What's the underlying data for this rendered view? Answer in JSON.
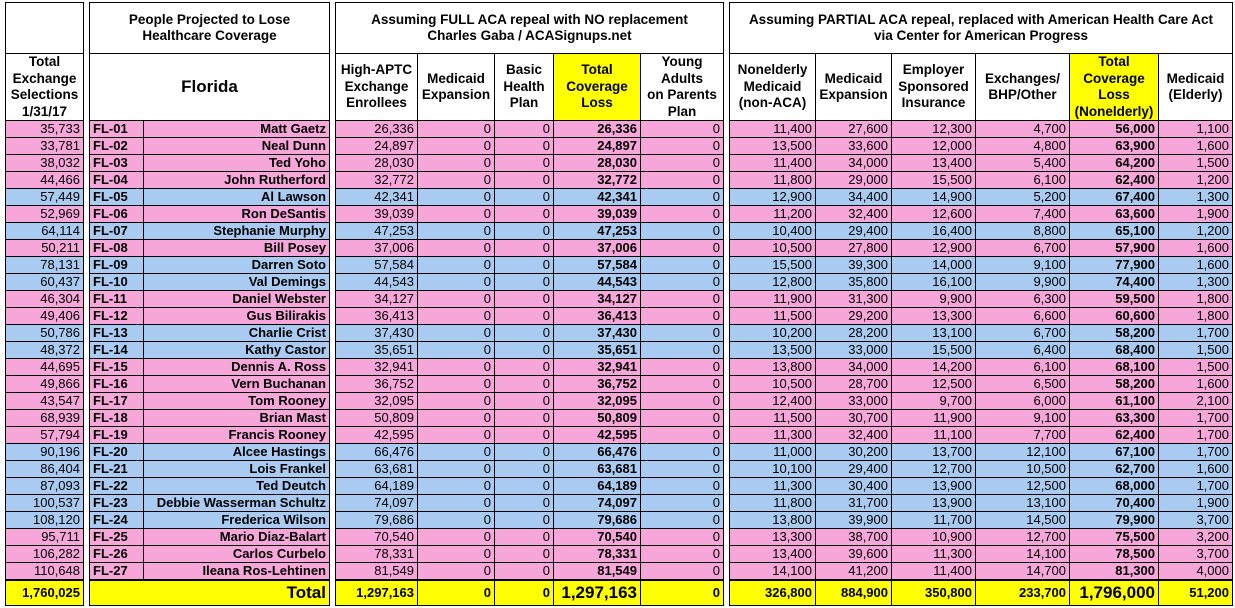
{
  "header": {
    "selections": [
      "Total",
      "Exchange",
      "Selections",
      "1/31/17"
    ],
    "group1": [
      "People Projected to Lose",
      "Healthcare Coverage"
    ],
    "state": "Florida",
    "group2": [
      "Assuming FULL ACA repeal with NO replacement",
      "Charles Gaba / ACASignups.net"
    ],
    "group3": [
      "Assuming PARTIAL ACA repeal, replaced with American Health Care Act",
      "via Center for American Progress"
    ],
    "columns": [
      [
        "High-APTC",
        "Exchange",
        "Enrollees"
      ],
      [
        "Medicaid",
        "Expansion"
      ],
      [
        "Basic",
        "Health",
        "Plan"
      ],
      [
        "Total",
        "Coverage",
        "Loss"
      ],
      [
        "Young",
        "Adults",
        "on Parents",
        "Plan"
      ],
      [
        "Nonelderly",
        "Medicaid",
        "(non-ACA)"
      ],
      [
        "Medicaid",
        "Expansion"
      ],
      [
        "Employer",
        "Sponsored",
        "Insurance"
      ],
      [
        "Exchanges/",
        "BHP/Other"
      ],
      [
        "Total",
        "Coverage",
        "Loss",
        "(Nonelderly)"
      ],
      [
        "Medicaid",
        "(Elderly)"
      ]
    ]
  },
  "table": {
    "rows": [
      [
        "35,733",
        "FL-01",
        "Matt Gaetz",
        "26,336",
        "0",
        "0",
        "26,336",
        "0",
        "11,400",
        "27,600",
        "12,300",
        "4,700",
        "56,000",
        "1,100"
      ],
      [
        "33,781",
        "FL-02",
        "Neal Dunn",
        "24,897",
        "0",
        "0",
        "24,897",
        "0",
        "13,500",
        "33,600",
        "12,000",
        "4,800",
        "63,900",
        "1,600"
      ],
      [
        "38,032",
        "FL-03",
        "Ted Yoho",
        "28,030",
        "0",
        "0",
        "28,030",
        "0",
        "11,400",
        "34,000",
        "13,400",
        "5,400",
        "64,200",
        "1,500"
      ],
      [
        "44,466",
        "FL-04",
        "John Rutherford",
        "32,772",
        "0",
        "0",
        "32,772",
        "0",
        "11,800",
        "29,000",
        "15,500",
        "6,100",
        "62,400",
        "1,200"
      ],
      [
        "57,449",
        "FL-05",
        "Al Lawson",
        "42,341",
        "0",
        "0",
        "42,341",
        "0",
        "12,900",
        "34,400",
        "14,900",
        "5,200",
        "67,400",
        "1,300"
      ],
      [
        "52,969",
        "FL-06",
        "Ron DeSantis",
        "39,039",
        "0",
        "0",
        "39,039",
        "0",
        "11,200",
        "32,400",
        "12,600",
        "7,400",
        "63,600",
        "1,900"
      ],
      [
        "64,114",
        "FL-07",
        "Stephanie Murphy",
        "47,253",
        "0",
        "0",
        "47,253",
        "0",
        "10,400",
        "29,400",
        "16,400",
        "8,800",
        "65,100",
        "1,200"
      ],
      [
        "50,211",
        "FL-08",
        "Bill Posey",
        "37,006",
        "0",
        "0",
        "37,006",
        "0",
        "10,500",
        "27,800",
        "12,900",
        "6,700",
        "57,900",
        "1,600"
      ],
      [
        "78,131",
        "FL-09",
        "Darren Soto",
        "57,584",
        "0",
        "0",
        "57,584",
        "0",
        "15,500",
        "39,300",
        "14,000",
        "9,100",
        "77,900",
        "1,600"
      ],
      [
        "60,437",
        "FL-10",
        "Val Demings",
        "44,543",
        "0",
        "0",
        "44,543",
        "0",
        "12,800",
        "35,800",
        "16,100",
        "9,900",
        "74,400",
        "1,300"
      ],
      [
        "46,304",
        "FL-11",
        "Daniel Webster",
        "34,127",
        "0",
        "0",
        "34,127",
        "0",
        "11,900",
        "31,300",
        "9,900",
        "6,300",
        "59,500",
        "1,800"
      ],
      [
        "49,406",
        "FL-12",
        "Gus Bilirakis",
        "36,413",
        "0",
        "0",
        "36,413",
        "0",
        "11,500",
        "29,200",
        "13,300",
        "6,600",
        "60,600",
        "1,800"
      ],
      [
        "50,786",
        "FL-13",
        "Charlie Crist",
        "37,430",
        "0",
        "0",
        "37,430",
        "0",
        "10,200",
        "28,200",
        "13,100",
        "6,700",
        "58,200",
        "1,700"
      ],
      [
        "48,372",
        "FL-14",
        "Kathy Castor",
        "35,651",
        "0",
        "0",
        "35,651",
        "0",
        "13,500",
        "33,000",
        "15,500",
        "6,400",
        "68,400",
        "1,500"
      ],
      [
        "44,695",
        "FL-15",
        "Dennis A. Ross",
        "32,941",
        "0",
        "0",
        "32,941",
        "0",
        "13,800",
        "34,000",
        "14,200",
        "6,100",
        "68,100",
        "1,500"
      ],
      [
        "49,866",
        "FL-16",
        "Vern Buchanan",
        "36,752",
        "0",
        "0",
        "36,752",
        "0",
        "10,500",
        "28,700",
        "12,500",
        "6,500",
        "58,200",
        "1,600"
      ],
      [
        "43,547",
        "FL-17",
        "Tom Rooney",
        "32,095",
        "0",
        "0",
        "32,095",
        "0",
        "12,400",
        "33,000",
        "9,700",
        "6,000",
        "61,100",
        "2,100"
      ],
      [
        "68,939",
        "FL-18",
        "Brian Mast",
        "50,809",
        "0",
        "0",
        "50,809",
        "0",
        "11,500",
        "30,700",
        "11,900",
        "9,100",
        "63,300",
        "1,700"
      ],
      [
        "57,794",
        "FL-19",
        "Francis Rooney",
        "42,595",
        "0",
        "0",
        "42,595",
        "0",
        "11,300",
        "32,400",
        "11,100",
        "7,700",
        "62,400",
        "1,700"
      ],
      [
        "90,196",
        "FL-20",
        "Alcee Hastings",
        "66,476",
        "0",
        "0",
        "66,476",
        "0",
        "11,000",
        "30,200",
        "13,700",
        "12,100",
        "67,100",
        "1,700"
      ],
      [
        "86,404",
        "FL-21",
        "Lois Frankel",
        "63,681",
        "0",
        "0",
        "63,681",
        "0",
        "10,100",
        "29,400",
        "12,700",
        "10,500",
        "62,700",
        "1,600"
      ],
      [
        "87,093",
        "FL-22",
        "Ted Deutch",
        "64,189",
        "0",
        "0",
        "64,189",
        "0",
        "11,300",
        "30,400",
        "13,900",
        "12,500",
        "68,000",
        "1,700"
      ],
      [
        "100,537",
        "FL-23",
        "Debbie Wasserman Schultz",
        "74,097",
        "0",
        "0",
        "74,097",
        "0",
        "11,800",
        "31,700",
        "13,900",
        "13,100",
        "70,400",
        "1,900"
      ],
      [
        "108,120",
        "FL-24",
        "Frederica Wilson",
        "79,686",
        "0",
        "0",
        "79,686",
        "0",
        "13,800",
        "39,900",
        "11,700",
        "14,500",
        "79,900",
        "3,700"
      ],
      [
        "95,711",
        "FL-25",
        "Mario Diaz-Balart",
        "70,540",
        "0",
        "0",
        "70,540",
        "0",
        "13,300",
        "38,700",
        "10,900",
        "12,700",
        "75,500",
        "3,200"
      ],
      [
        "106,282",
        "FL-26",
        "Carlos Curbelo",
        "78,331",
        "0",
        "0",
        "78,331",
        "0",
        "13,400",
        "39,600",
        "11,300",
        "14,100",
        "78,500",
        "3,700"
      ],
      [
        "110,648",
        "FL-27",
        "Ileana Ros-Lehtinen",
        "81,549",
        "0",
        "0",
        "81,549",
        "0",
        "14,100",
        "41,200",
        "11,400",
        "14,700",
        "81,300",
        "4,000"
      ]
    ],
    "row_colors": [
      "#f7a6d9",
      "#f7a6d9",
      "#f7a6d9",
      "#f7a6d9",
      "#a9cbf2",
      "#f7a6d9",
      "#a9cbf2",
      "#f7a6d9",
      "#a9cbf2",
      "#a9cbf2",
      "#f7a6d9",
      "#f7a6d9",
      "#a9cbf2",
      "#a9cbf2",
      "#f7a6d9",
      "#f7a6d9",
      "#f7a6d9",
      "#f7a6d9",
      "#f7a6d9",
      "#a9cbf2",
      "#a9cbf2",
      "#a9cbf2",
      "#a9cbf2",
      "#a9cbf2",
      "#f7a6d9",
      "#f7a6d9",
      "#f7a6d9"
    ],
    "total": [
      "1,760,025",
      "Total",
      "1,297,163",
      "0",
      "0",
      "1,297,163",
      "0",
      "326,800",
      "884,900",
      "350,800",
      "233,700",
      "1,796,000",
      "51,200"
    ],
    "highlight": "#ffff00"
  }
}
